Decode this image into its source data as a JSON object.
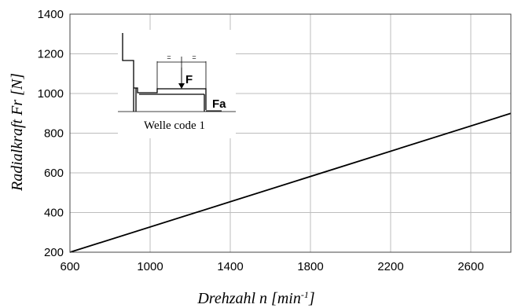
{
  "chart_data": {
    "type": "line",
    "xlabel": "Drehzahl n [min",
    "xlabel_sup": "-1",
    "xlabel_end": "]",
    "ylabel": "Radialkraft Fr [N]",
    "xlim": [
      600,
      2800
    ],
    "ylim": [
      200,
      1400
    ],
    "x_ticks": [
      600,
      1000,
      1400,
      1800,
      2200,
      2600
    ],
    "y_ticks": [
      200,
      400,
      600,
      800,
      1000,
      1200,
      1400
    ],
    "grid": true,
    "series": [
      {
        "x": [
          600,
          2800
        ],
        "y": [
          200,
          900
        ]
      }
    ],
    "inset": {
      "caption": "Welle code 1",
      "force_label": "F",
      "axial_label": "Fa",
      "equal_marks": [
        "=",
        "="
      ]
    }
  }
}
